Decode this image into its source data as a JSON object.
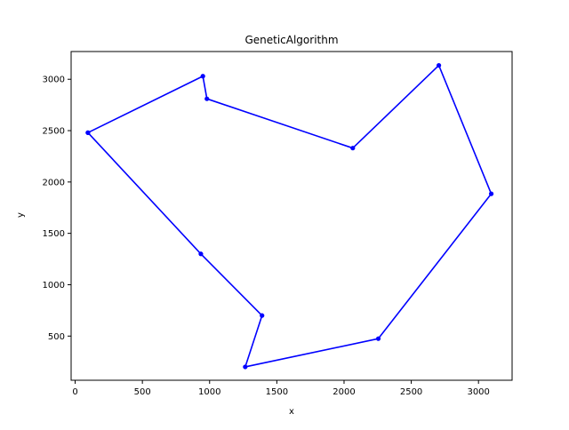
{
  "chart_data": {
    "type": "line",
    "title": "GeneticAlgorithm",
    "xlabel": "x",
    "ylabel": "y",
    "xlim": [
      -30,
      3250
    ],
    "ylim": [
      70,
      3270
    ],
    "xticks": [
      0,
      500,
      1000,
      1500,
      2000,
      2500,
      3000
    ],
    "yticks": [
      500,
      1000,
      1500,
      2000,
      2500,
      3000
    ],
    "grid": false,
    "colors": {
      "line": "#0000ff",
      "marker": "#0000ff",
      "axes": "#000000",
      "background": "#ffffff"
    },
    "series": [
      {
        "points": [
          {
            "x": 95,
            "y": 2480
          },
          {
            "x": 950,
            "y": 3030
          },
          {
            "x": 980,
            "y": 2810
          },
          {
            "x": 2065,
            "y": 2330
          },
          {
            "x": 2705,
            "y": 3135
          },
          {
            "x": 3095,
            "y": 1885
          },
          {
            "x": 2255,
            "y": 475
          },
          {
            "x": 1265,
            "y": 200
          },
          {
            "x": 1390,
            "y": 700
          },
          {
            "x": 935,
            "y": 1300
          },
          {
            "x": 95,
            "y": 2480
          }
        ]
      }
    ]
  }
}
